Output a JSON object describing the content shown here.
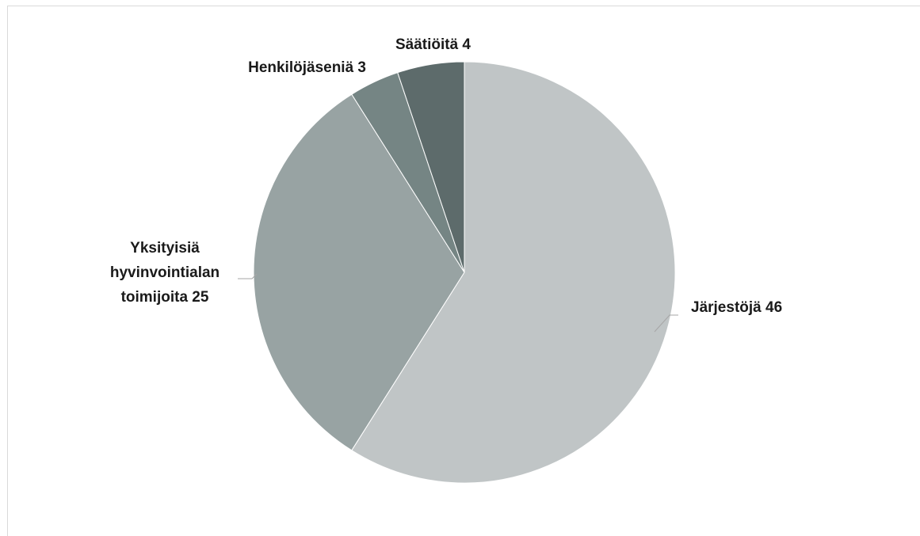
{
  "chart_data": {
    "type": "pie",
    "title": "",
    "slices": [
      {
        "label": "Järjestöjä",
        "value": 46,
        "color": "#c0c5c6"
      },
      {
        "label": "Yksityisiä hyvinvointialan toimijoita",
        "value": 25,
        "color": "#98a3a3"
      },
      {
        "label": "Henkilöjäseniä",
        "value": 3,
        "color": "#758584"
      },
      {
        "label": "Säätiöitä",
        "value": 4,
        "color": "#5d6b6b"
      }
    ],
    "data_labels": [
      [
        "Järjestöjä 46"
      ],
      [
        "Yksityisiä",
        "hyvinvointialan",
        "toimijoita 25"
      ],
      [
        "Henkilöjäseniä 3"
      ],
      [
        "Säätiöitä 4"
      ]
    ],
    "legend": "none"
  }
}
